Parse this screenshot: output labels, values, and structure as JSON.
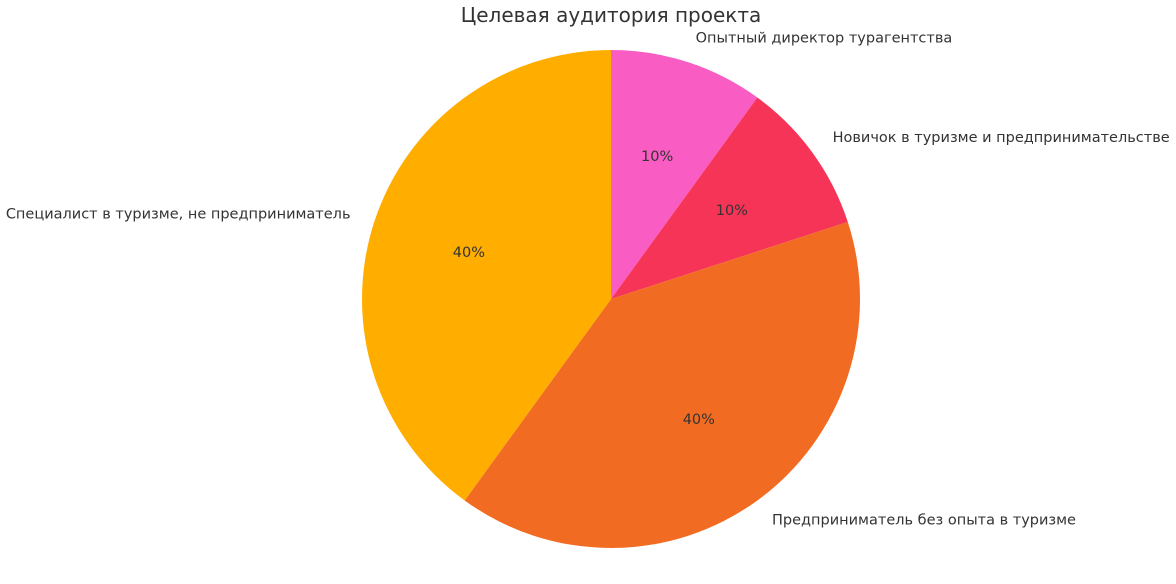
{
  "chart_data": {
    "type": "pie",
    "title": "Целевая аудитория проекта",
    "start_angle_deg": 90,
    "direction": "clockwise",
    "slices": [
      {
        "label": "Опытный директор турагентства",
        "value": 10,
        "pct_label": "10%",
        "color": "#F95CC3"
      },
      {
        "label": "Новичок в туризме и предпринимательстве",
        "value": 10,
        "pct_label": "10%",
        "color": "#F63457"
      },
      {
        "label": "Предприниматель без опыта в туризме",
        "value": 40,
        "pct_label": "40%",
        "color": "#F26B22"
      },
      {
        "label": "Специалист в туризме, не предприниматель",
        "value": 40,
        "pct_label": "40%",
        "color": "#FFAE00"
      }
    ]
  }
}
